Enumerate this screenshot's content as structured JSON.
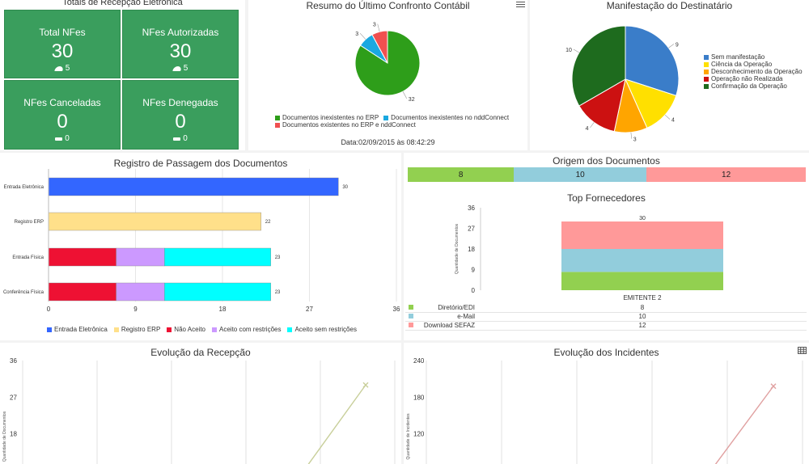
{
  "recepcao": {
    "title": "Totais de Recepção Eletrônica",
    "tiles": [
      {
        "label": "Total NFes",
        "value": "30",
        "sub": "5",
        "icon": "cloud-icon"
      },
      {
        "label": "NFes Autorizadas",
        "value": "30",
        "sub": "5",
        "icon": "cloud-icon"
      },
      {
        "label": "NFes Canceladas",
        "value": "0",
        "sub": "0",
        "icon": "bar-icon"
      },
      {
        "label": "NFes Denegadas",
        "value": "0",
        "sub": "0",
        "icon": "bar-icon"
      }
    ],
    "color": "#3a9e5d"
  },
  "confronto": {
    "title": "Resumo do Último Confronto Contábil",
    "date": "Data:02/09/2015 às 08:42:29",
    "menu_icon": "menu-icon"
  },
  "manifestacao": {
    "title": "Manifestação do Destinatário"
  },
  "registro": {
    "title": "Registro de Passagem dos Documentos"
  },
  "origem": {
    "title": "Origem dos Documentos",
    "segments": [
      {
        "value": 8,
        "label": "8",
        "color": "#92d050"
      },
      {
        "value": 10,
        "label": "10",
        "color": "#92cddc"
      },
      {
        "value": 12,
        "label": "12",
        "color": "#ff9999"
      }
    ]
  },
  "fornecedores": {
    "title": "Top Fornecedores",
    "table": [
      {
        "name": "Diretório/EDI",
        "value": "8",
        "color": "#92d050"
      },
      {
        "name": "e-Mail",
        "value": "10",
        "color": "#92cddc"
      },
      {
        "name": "Download SEFAZ",
        "value": "12",
        "color": "#ff9999"
      }
    ]
  },
  "evolucao_recepcao": {
    "title": "Evolução da Recepção"
  },
  "evolucao_incidentes": {
    "title": "Evolução dos Incidentes",
    "table_icon": "table-icon"
  },
  "chart_data": [
    {
      "id": "confronto",
      "type": "pie",
      "labels": [
        "Documentos inexistentes no ERP",
        "Documentos inexistentes no nddConnect",
        "Documentos existentes no ERP e nddConnect"
      ],
      "values": [
        32,
        3,
        3
      ],
      "colors": [
        "#2e9e1a",
        "#1aa8e0",
        "#f05050"
      ],
      "legend": "bottom"
    },
    {
      "id": "manifestacao",
      "type": "pie",
      "labels": [
        "Sem manifestação",
        "Ciência da Operação",
        "Desconhecimento da Operação",
        "Operação não Realizada",
        "Confirmação da Operação"
      ],
      "values": [
        9,
        4,
        3,
        4,
        10
      ],
      "colors": [
        "#3a7dc9",
        "#ffe000",
        "#ffa500",
        "#cc1111",
        "#1e6b1e"
      ],
      "legend": "right"
    },
    {
      "id": "registro",
      "type": "bar",
      "orientation": "horizontal",
      "stacked": true,
      "categories": [
        "Entrada Eletrônica",
        "Registro ERP",
        "Entrada Física",
        "Conferência Física"
      ],
      "series": [
        {
          "name": "Entrada Eletrônica",
          "values": [
            30,
            0,
            0,
            0
          ],
          "color": "#3366ff"
        },
        {
          "name": "Registro ERP",
          "values": [
            0,
            22,
            0,
            0
          ],
          "color": "#ffe08a"
        },
        {
          "name": "Não Aceito",
          "values": [
            0,
            0,
            7,
            7
          ],
          "color": "#ee1133"
        },
        {
          "name": "Aceito com restrições",
          "values": [
            0,
            0,
            5,
            5
          ],
          "color": "#cc99ff"
        },
        {
          "name": "Aceito sem restrições",
          "values": [
            0,
            0,
            11,
            11
          ],
          "color": "#00ffff"
        }
      ],
      "totals": [
        "30",
        "22",
        "23",
        "23"
      ],
      "xticks": [
        "0",
        "9",
        "18",
        "27",
        "36"
      ],
      "xlim": [
        0,
        36
      ],
      "legend": "bottom"
    },
    {
      "id": "fornecedores",
      "type": "bar",
      "stacked": true,
      "categories": [
        "EMITENTE 2"
      ],
      "series": [
        {
          "name": "Diretório/EDI",
          "values": [
            8
          ],
          "color": "#92d050"
        },
        {
          "name": "e-Mail",
          "values": [
            10
          ],
          "color": "#92cddc"
        },
        {
          "name": "Download SEFAZ",
          "values": [
            12
          ],
          "color": "#ff9999"
        }
      ],
      "total_label": "30",
      "ylabel": "Quantidade de Documentos",
      "yticks": [
        "36",
        "27",
        "18",
        "9",
        "0"
      ],
      "ylim": [
        0,
        36
      ]
    },
    {
      "id": "evolucao_recepcao",
      "type": "line",
      "ylabel": "Quantidade de Documentos",
      "yticks": [
        "36",
        "27",
        "18"
      ],
      "ylim": [
        9,
        36
      ],
      "series": [
        {
          "points": [
            [
              0.82,
              9
            ],
            [
              1.0,
              30
            ]
          ],
          "color": "#c8cf9a"
        }
      ]
    },
    {
      "id": "evolucao_incidentes",
      "type": "line",
      "ylabel": "Quantidade de Incidentes",
      "yticks": [
        "240",
        "180",
        "120"
      ],
      "ylim": [
        60,
        240
      ],
      "series": [
        {
          "points": [
            [
              0.82,
              60
            ],
            [
              1.0,
              198
            ]
          ],
          "color": "#e0a0a0"
        }
      ]
    }
  ]
}
